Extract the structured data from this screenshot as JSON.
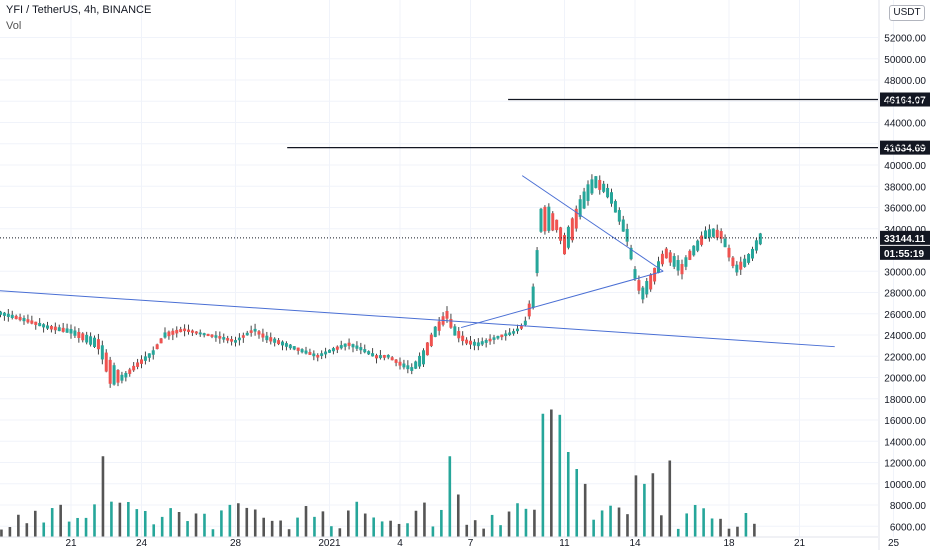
{
  "header": {
    "title": "YFI / TetherUS, 4h, BINANCE",
    "volume_label": "Vol",
    "currency_badge": "USDT"
  },
  "colors": {
    "up": "#26a69a",
    "down": "#ef5350",
    "wick": "#444444",
    "volume_down": "#555555",
    "trendline": "#4a6fd4",
    "hline": "#131722",
    "grid": "#f0f3fa"
  },
  "chart_data": {
    "type": "candlestick",
    "symbol": "YFI / TetherUS",
    "interval": "4h",
    "exchange": "BINANCE",
    "price_axis": {
      "ticks": [
        52000,
        50000,
        48000,
        46000,
        44000,
        42000,
        40000,
        38000,
        36000,
        34000,
        30000,
        28000,
        26000,
        24000,
        22000,
        20000,
        18000,
        16000,
        14000,
        12000,
        10000,
        8000,
        6000
      ],
      "tick_labels": [
        "52000.00",
        "50000.00",
        "48000.00",
        "46000.00",
        "44000.00",
        "42000.00",
        "40000.00",
        "38000.00",
        "36000.00",
        "34000.00",
        "30000.00",
        "28000.00",
        "26000.00",
        "24000.00",
        "22000.00",
        "20000.00",
        "18000.00",
        "16000.00",
        "14000.00",
        "12000.00",
        "10000.00",
        "8000.00",
        "6000.00"
      ]
    },
    "x_axis": {
      "ticks": [
        21,
        24,
        28,
        32,
        35,
        38,
        42,
        45,
        49,
        52,
        56
      ],
      "tick_labels": [
        "21",
        "24",
        "28",
        "2021",
        "4",
        "7",
        "11",
        "14",
        "18",
        "21",
        "25"
      ]
    },
    "current_price": 33144.11,
    "current_price_label": "33144.11",
    "countdown_label": "01:55:19",
    "horizontal_levels": [
      {
        "price": 46164.07,
        "label": "46164.07",
        "x_start": 39.6
      },
      {
        "price": 41634.69,
        "label": "41634.69",
        "x_start": 30.2
      }
    ],
    "trendlines": [
      {
        "from": [
          13.0,
          28900
        ],
        "to": [
          53.5,
          22900
        ]
      },
      {
        "from": [
          40.2,
          39000
        ],
        "to": [
          46.2,
          30000
        ]
      },
      {
        "from": [
          37.6,
          24700
        ],
        "to": [
          46.2,
          30000
        ]
      }
    ],
    "anchors": [
      [
        13.0,
        27500,
        28000
      ],
      [
        13.5,
        27700,
        28200
      ],
      [
        14.5,
        28300,
        28900
      ],
      [
        15.0,
        28200,
        28700
      ],
      [
        15.5,
        27100,
        28400
      ],
      [
        16.5,
        26400,
        26900
      ],
      [
        17.3,
        25600,
        26000
      ],
      [
        18.0,
        25800,
        26300
      ],
      [
        19.0,
        25200,
        25700
      ],
      [
        20.0,
        24500,
        25000
      ],
      [
        21.0,
        24000,
        24700
      ],
      [
        22.2,
        22300,
        23900
      ],
      [
        22.7,
        18400,
        22300
      ],
      [
        23.2,
        19600,
        20300
      ],
      [
        23.8,
        20800,
        21500
      ],
      [
        24.5,
        22000,
        22700
      ],
      [
        25.0,
        23600,
        24400
      ],
      [
        25.8,
        24300,
        24700
      ],
      [
        26.5,
        24000,
        24300
      ],
      [
        27.3,
        23600,
        24000
      ],
      [
        28.0,
        23200,
        23600
      ],
      [
        28.8,
        24300,
        24700
      ],
      [
        29.3,
        23400,
        24100
      ],
      [
        30.0,
        22900,
        23500
      ],
      [
        30.8,
        22300,
        22800
      ],
      [
        31.5,
        21800,
        22200
      ],
      [
        32.2,
        22400,
        22900
      ],
      [
        32.8,
        22900,
        23400
      ],
      [
        33.3,
        22500,
        23000
      ],
      [
        34.0,
        21700,
        22200
      ],
      [
        34.5,
        21800,
        22200
      ],
      [
        35.0,
        21000,
        21600
      ],
      [
        35.5,
        20500,
        21100
      ],
      [
        36.0,
        20800,
        23000
      ],
      [
        36.5,
        23500,
        25100
      ],
      [
        37.0,
        25300,
        26500
      ],
      [
        37.3,
        23700,
        25200
      ],
      [
        37.8,
        23100,
        23700
      ],
      [
        38.3,
        22800,
        23400
      ],
      [
        38.8,
        23300,
        23700
      ],
      [
        39.3,
        23700,
        24100
      ],
      [
        39.8,
        24000,
        24400
      ],
      [
        40.3,
        24700,
        25100
      ],
      [
        40.7,
        26000,
        29600
      ],
      [
        41.0,
        33000,
        36600
      ],
      [
        41.3,
        33000,
        37000
      ],
      [
        41.7,
        33600,
        35000
      ],
      [
        42.0,
        31000,
        34000
      ],
      [
        42.3,
        32000,
        35500
      ],
      [
        42.7,
        34800,
        37500
      ],
      [
        43.0,
        36100,
        38700
      ],
      [
        43.3,
        37500,
        39400
      ],
      [
        43.7,
        37200,
        38400
      ],
      [
        44.0,
        36000,
        37800
      ],
      [
        44.3,
        34500,
        36300
      ],
      [
        44.7,
        32200,
        34200
      ],
      [
        45.0,
        29000,
        30500
      ],
      [
        45.3,
        26900,
        28700
      ],
      [
        45.7,
        27900,
        30300
      ],
      [
        46.0,
        29500,
        31300
      ],
      [
        46.3,
        31000,
        32500
      ],
      [
        46.7,
        30000,
        31700
      ],
      [
        47.0,
        29400,
        31000
      ],
      [
        47.3,
        30700,
        32100
      ],
      [
        47.7,
        31700,
        33300
      ],
      [
        48.0,
        32800,
        34100
      ],
      [
        48.3,
        33000,
        34300
      ],
      [
        48.7,
        32800,
        34000
      ],
      [
        49.0,
        31000,
        32500
      ],
      [
        49.3,
        29600,
        30800
      ],
      [
        49.7,
        30200,
        31500
      ],
      [
        50.0,
        30900,
        32400
      ],
      [
        50.3,
        32200,
        33900
      ]
    ]
  }
}
